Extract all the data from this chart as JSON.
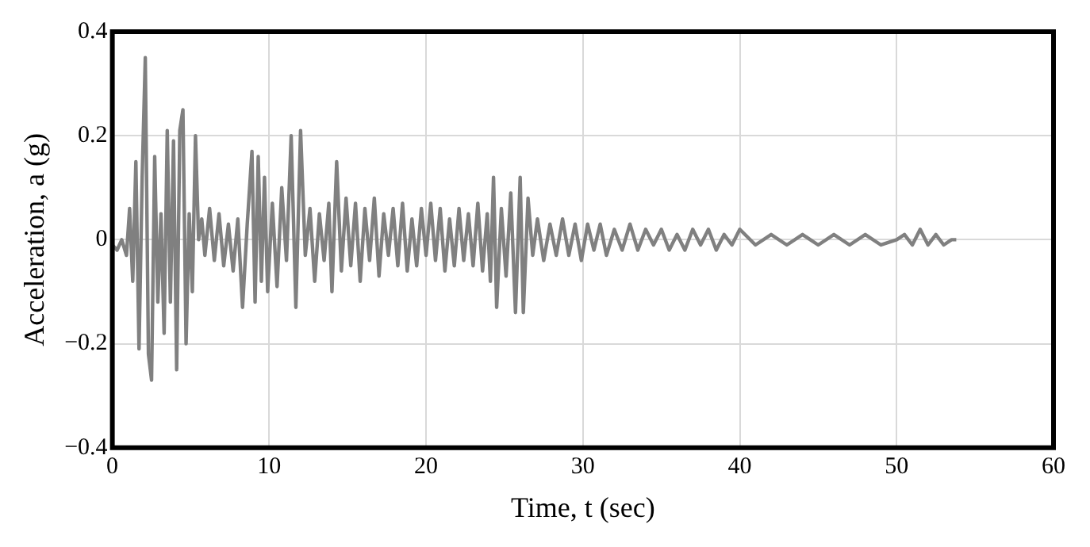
{
  "chart_data": {
    "type": "line",
    "xlabel": "Time, t (sec)",
    "ylabel": "Acceleration, a (g)",
    "xlim": [
      0,
      60
    ],
    "xticks": [
      0,
      10,
      20,
      30,
      40,
      50,
      60
    ],
    "ylim": [
      -0.4,
      0.4
    ],
    "yticks": [
      {
        "value": -0.4,
        "label": "−0.4"
      },
      {
        "value": -0.2,
        "label": "−0.2"
      },
      0,
      0.2,
      0.4
    ],
    "grid": true,
    "legend": false,
    "marker": "none",
    "line_style": "solid",
    "series": [
      {
        "color": "#808080",
        "x": [
          0,
          0.3,
          0.6,
          0.9,
          1.1,
          1.3,
          1.5,
          1.7,
          1.9,
          2.1,
          2.3,
          2.5,
          2.7,
          2.9,
          3.1,
          3.3,
          3.5,
          3.7,
          3.9,
          4.1,
          4.3,
          4.5,
          4.7,
          4.9,
          5.1,
          5.3,
          5.5,
          5.7,
          5.9,
          6.2,
          6.5,
          6.8,
          7.1,
          7.4,
          7.7,
          8.0,
          8.3,
          8.6,
          8.9,
          9.1,
          9.3,
          9.5,
          9.7,
          9.9,
          10.2,
          10.5,
          10.8,
          11.1,
          11.4,
          11.7,
          12.0,
          12.3,
          12.6,
          12.9,
          13.2,
          13.5,
          13.8,
          14.0,
          14.3,
          14.6,
          14.9,
          15.2,
          15.5,
          15.8,
          16.1,
          16.4,
          16.7,
          17.0,
          17.3,
          17.6,
          17.9,
          18.2,
          18.5,
          18.8,
          19.1,
          19.4,
          19.7,
          20.0,
          20.3,
          20.6,
          20.9,
          21.2,
          21.5,
          21.8,
          22.1,
          22.4,
          22.7,
          23.0,
          23.3,
          23.6,
          23.9,
          24.1,
          24.3,
          24.5,
          24.8,
          25.1,
          25.4,
          25.7,
          26.0,
          26.2,
          26.5,
          26.8,
          27.1,
          27.5,
          27.9,
          28.3,
          28.7,
          29.1,
          29.5,
          29.9,
          30.3,
          30.7,
          31.1,
          31.5,
          32.0,
          32.5,
          33.0,
          33.5,
          34.0,
          34.5,
          35.0,
          35.5,
          36.0,
          36.5,
          37.0,
          37.5,
          38.0,
          38.5,
          39.0,
          39.5,
          40.0,
          41.0,
          42.0,
          43.0,
          44.0,
          45.0,
          46.0,
          47.0,
          48.0,
          49.0,
          50.0,
          50.5,
          51.0,
          51.5,
          52.0,
          52.5,
          53.0,
          53.5,
          53.8
        ],
        "values": [
          -0.01,
          -0.02,
          0.0,
          -0.03,
          0.06,
          -0.08,
          0.15,
          -0.21,
          0.12,
          0.35,
          -0.22,
          -0.27,
          0.16,
          -0.12,
          0.05,
          -0.18,
          0.21,
          -0.12,
          0.19,
          -0.25,
          0.21,
          0.25,
          -0.2,
          0.05,
          -0.1,
          0.2,
          0.0,
          0.04,
          -0.03,
          0.06,
          -0.04,
          0.05,
          -0.05,
          0.03,
          -0.06,
          0.04,
          -0.13,
          0.03,
          0.17,
          -0.12,
          0.16,
          -0.08,
          0.12,
          -0.1,
          0.07,
          -0.09,
          0.1,
          -0.04,
          0.2,
          -0.13,
          0.21,
          -0.03,
          0.06,
          -0.08,
          0.05,
          -0.04,
          0.07,
          -0.1,
          0.15,
          -0.06,
          0.08,
          -0.05,
          0.07,
          -0.08,
          0.06,
          -0.04,
          0.08,
          -0.07,
          0.05,
          -0.03,
          0.06,
          -0.05,
          0.07,
          -0.06,
          0.04,
          -0.05,
          0.06,
          -0.03,
          0.07,
          -0.04,
          0.06,
          -0.06,
          0.04,
          -0.05,
          0.06,
          -0.04,
          0.05,
          -0.05,
          0.07,
          -0.06,
          0.05,
          -0.08,
          0.12,
          -0.13,
          0.06,
          -0.07,
          0.09,
          -0.14,
          0.12,
          -0.14,
          0.08,
          -0.03,
          0.04,
          -0.04,
          0.03,
          -0.03,
          0.04,
          -0.03,
          0.03,
          -0.04,
          0.03,
          -0.02,
          0.03,
          -0.03,
          0.02,
          -0.02,
          0.03,
          -0.02,
          0.02,
          -0.01,
          0.02,
          -0.02,
          0.01,
          -0.02,
          0.02,
          -0.01,
          0.02,
          -0.02,
          0.01,
          -0.01,
          0.02,
          -0.01,
          0.01,
          -0.01,
          0.01,
          -0.01,
          0.01,
          -0.01,
          0.01,
          -0.01,
          0.0,
          0.01,
          -0.01,
          0.02,
          -0.01,
          0.01,
          -0.01,
          0.0,
          0.0
        ]
      }
    ]
  }
}
